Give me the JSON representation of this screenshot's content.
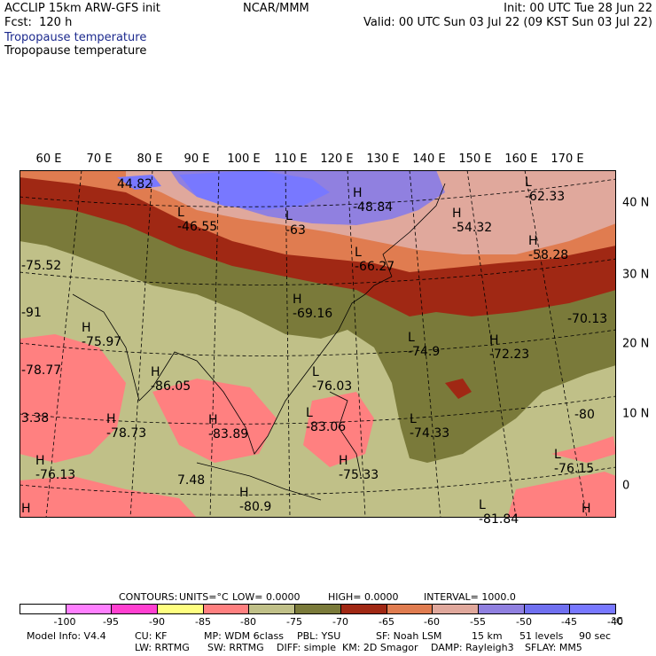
{
  "header": {
    "model": "ACCLIP 15km ARW-GFS init",
    "forecast": "Fcst:  120 h",
    "org": "NCAR/MMM",
    "init": "Init: 00 UTC Tue 28 Jun 22",
    "valid": "Valid: 00 UTC Sun 03 Jul 22 (09 KST Sun 03 Jul 22)",
    "field_blue": "Tropopause temperature",
    "field_black": "Tropopause temperature"
  },
  "map": {
    "lon_labels": [
      "60 E",
      "70 E",
      "80 E",
      "90 E",
      "100 E",
      "110 E",
      "120 E",
      "130 E",
      "140 E",
      "150 E",
      "160 E",
      "170 E"
    ],
    "lat_labels": [
      "40 N",
      "30 N",
      "20 N",
      "10 N",
      "0"
    ],
    "annotations": [
      {
        "t": "H",
        "v": "44.82"
      },
      {
        "t": "L",
        "v": "-46.55"
      },
      {
        "t": "L",
        "v": "-63"
      },
      {
        "t": "H",
        "v": "-48.84"
      },
      {
        "t": "H",
        "v": "-54.32"
      },
      {
        "t": "L",
        "v": "-62.33"
      },
      {
        "t": "",
        "v": "-75.52"
      },
      {
        "t": "L",
        "v": "-66.27"
      },
      {
        "t": "H",
        "v": "-58.28"
      },
      {
        "t": "H",
        "v": "-69.16"
      },
      {
        "t": "",
        "v": "-70.13"
      },
      {
        "t": "H",
        "v": "-75.97"
      },
      {
        "t": "L",
        "v": "-74.9"
      },
      {
        "t": "H",
        "v": "-72.23"
      },
      {
        "t": "",
        "v": "-78.77"
      },
      {
        "t": "H",
        "v": "-86.05"
      },
      {
        "t": "L",
        "v": "-76.03"
      },
      {
        "t": "",
        "v": "-80"
      },
      {
        "t": "",
        "v": "3.38"
      },
      {
        "t": "H",
        "v": "-78.73"
      },
      {
        "t": "H",
        "v": "-83.89"
      },
      {
        "t": "L",
        "v": "-83.06"
      },
      {
        "t": "L",
        "v": "-74.33"
      },
      {
        "t": "L",
        "v": "-76.15"
      },
      {
        "t": "H",
        "v": "-76.13"
      },
      {
        "t": "",
        "v": "7.48"
      },
      {
        "t": "H",
        "v": "-75.33"
      },
      {
        "t": "H",
        "v": "-80.9"
      },
      {
        "t": "L",
        "v": "-81.84"
      },
      {
        "t": "H",
        "v": ""
      },
      {
        "t": "H",
        "v": ""
      },
      {
        "t": "",
        "v": "-91"
      }
    ]
  },
  "contours": {
    "label": "CONTOURS:",
    "units": "UNITS=°C",
    "low": "LOW=  0.0000",
    "high": "HIGH=  0.0000",
    "interval": "INTERVAL=    1000.0"
  },
  "colorbar": {
    "labels": [
      "-100",
      "-95",
      "-90",
      "-85",
      "-80",
      "-75",
      "-70",
      "-65",
      "-60",
      "-55",
      "-50",
      "-45",
      "-40",
      "°C"
    ],
    "colors": [
      "#ffffff",
      "#ff80ff",
      "#ff40d0",
      "#ffff80",
      "#ff8080",
      "#c0c088",
      "#7a7a3a",
      "#a02814",
      "#e07c50",
      "#e0a89c",
      "#9080e0",
      "#7070f0",
      "#7878ff"
    ]
  },
  "footer": {
    "line1": [
      "Model Info: V4.4",
      "CU: KF",
      "MP: WDM 6class",
      "PBL: YSU",
      "SF: Noah LSM",
      "15 km",
      "51 levels",
      "90 sec"
    ],
    "line2": [
      "LW: RRTMG",
      "SW: RRTMG",
      "DIFF: simple",
      "KM: 2D Smagor",
      "DAMP: Rayleigh3",
      "SFLAY: MM5"
    ]
  }
}
